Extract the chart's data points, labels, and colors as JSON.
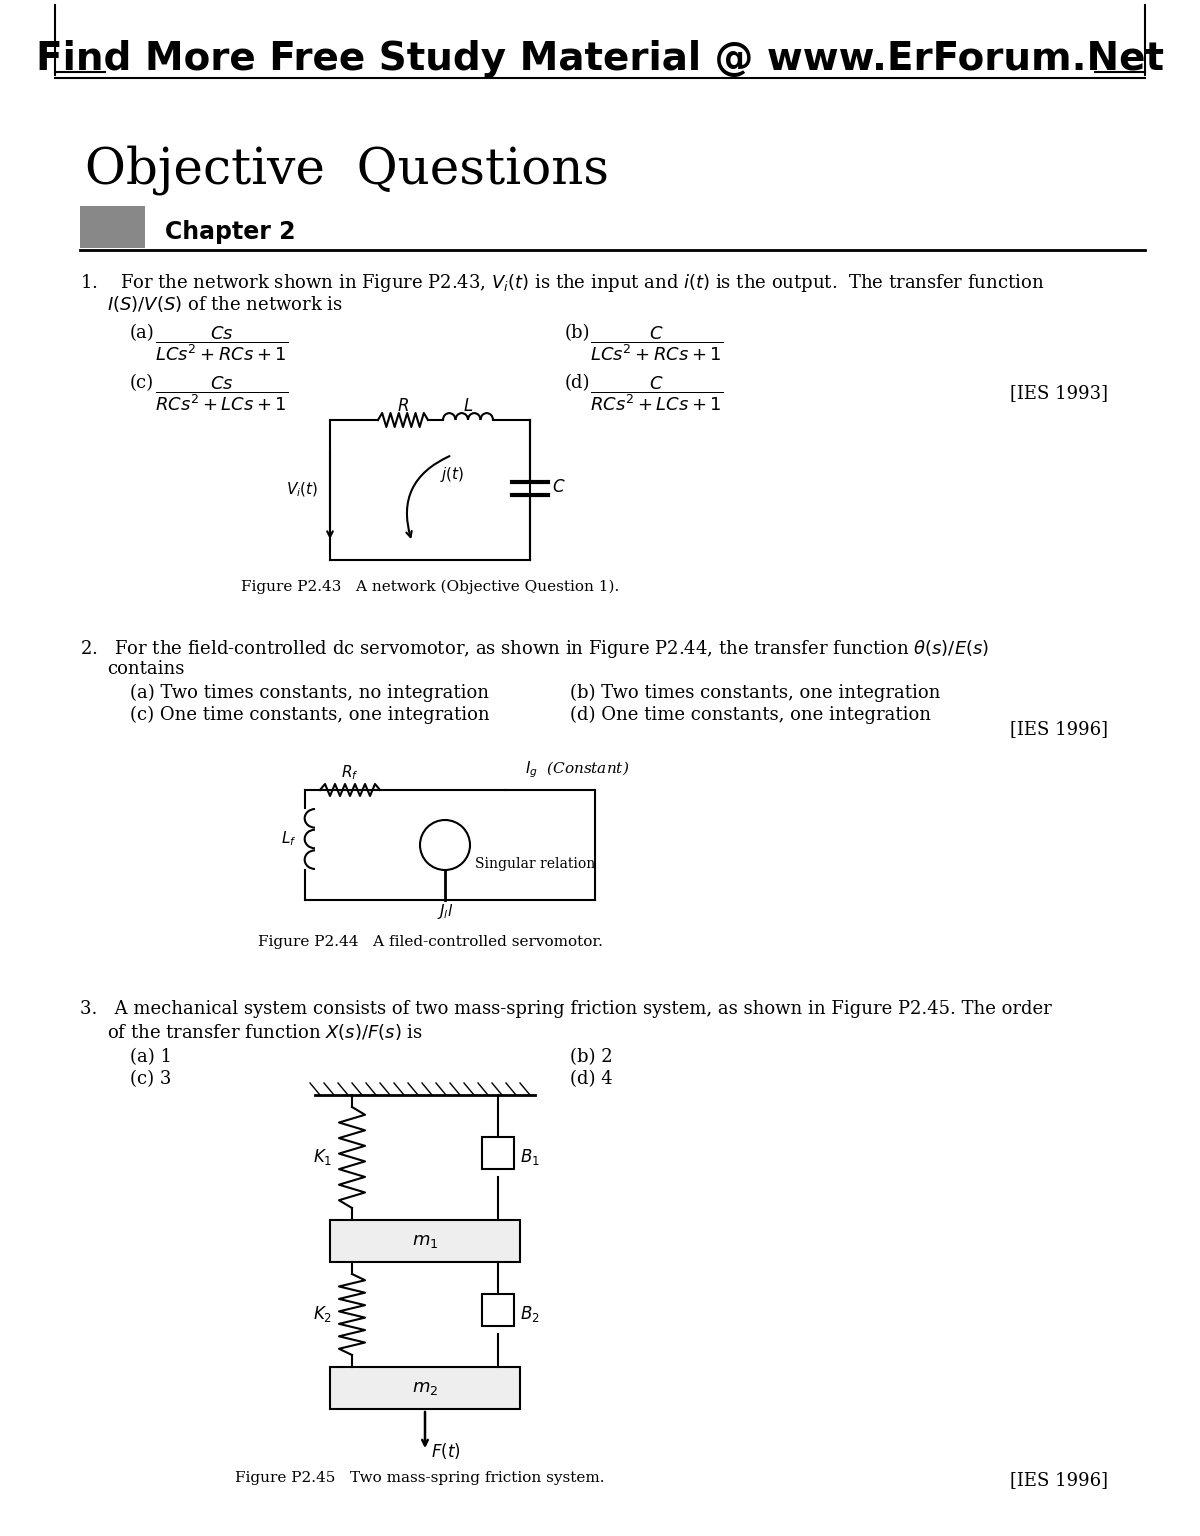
{
  "header_text": "Find More Free Study Material @ www.ErForum.Net",
  "title": "Objective  Questions",
  "chapter_label": "Chapter 2",
  "bg_color": "#ffffff",
  "chapter_box_color": "#888888",
  "q1_ref": "[IES 1993]",
  "fig1_label": "Figure P2.43   A network (Objective Question 1).",
  "q2_a": "(a) Two times constants, no integration",
  "q2_b": "(b) Two times constants, one integration",
  "q2_c": "(c) One time constants, one integration",
  "q2_d": "(d) One time constants, one integration",
  "q2_ref": "[IES 1996]",
  "fig2_label": "Figure P2.44   A filed-controlled servomotor.",
  "q3_a": "(a) 1",
  "q3_b": "(b) 2",
  "q3_c": "(c) 3",
  "q3_d": "(d) 4",
  "q3_ref": "[IES 1996]",
  "fig3_label": "Figure P2.45   Two mass-spring friction system."
}
